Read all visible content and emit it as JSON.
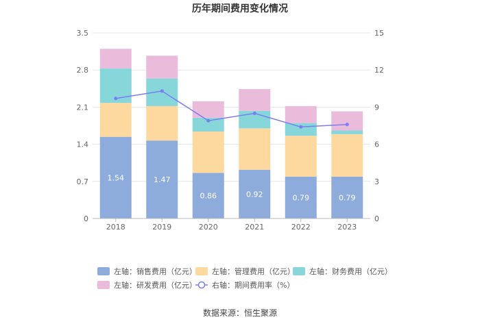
{
  "chart_data": {
    "type": "bar",
    "stacked": true,
    "title": "历年期间费用变化情况",
    "categories": [
      "2018",
      "2019",
      "2020",
      "2021",
      "2022",
      "2023"
    ],
    "y_left": {
      "min": 0,
      "max": 3.5,
      "ticks": [
        "0",
        "0.7",
        "1.4",
        "2.1",
        "2.8",
        "3.5"
      ]
    },
    "y_right": {
      "min": 0,
      "max": 15,
      "ticks": [
        "0",
        "3",
        "6",
        "9",
        "12",
        "15"
      ]
    },
    "series": [
      {
        "name": "左轴：销售费用（亿元）",
        "axis": "left",
        "color": "#8eacdb",
        "values": [
          1.54,
          1.47,
          0.86,
          0.92,
          0.79,
          0.79
        ],
        "labels": [
          "1.54",
          "1.47",
          "0.86",
          "0.92",
          "0.79",
          "0.79"
        ]
      },
      {
        "name": "左轴：管理费用（亿元）",
        "axis": "left",
        "color": "#fdd9a0",
        "values": [
          0.64,
          0.65,
          0.78,
          0.78,
          0.77,
          0.8
        ]
      },
      {
        "name": "左轴：财务费用（亿元）",
        "axis": "left",
        "color": "#86d6da",
        "values": [
          0.65,
          0.52,
          0.26,
          0.33,
          0.24,
          0.07
        ]
      },
      {
        "name": "左轴：研发费用（亿元）",
        "axis": "left",
        "color": "#ebbbdc",
        "values": [
          0.37,
          0.43,
          0.31,
          0.41,
          0.32,
          0.36
        ]
      },
      {
        "name": "右轴：期间费用率（%）",
        "axis": "right",
        "type": "line",
        "color": "#7b7cf2",
        "values": [
          9.7,
          10.3,
          7.9,
          8.5,
          7.4,
          7.6
        ]
      }
    ],
    "source": "数据来源：恒生聚源"
  }
}
